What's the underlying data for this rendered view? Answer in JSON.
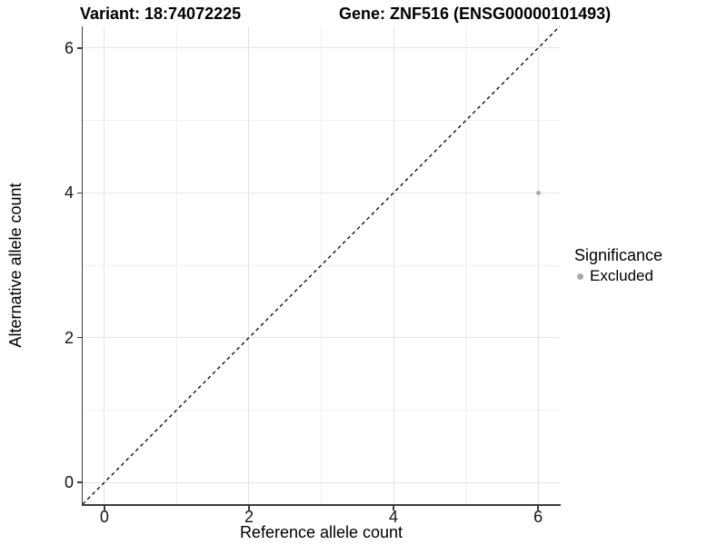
{
  "chart_data": {
    "type": "scatter",
    "title_left": "Variant: 18:74072225",
    "title_right": "Gene: ZNF516 (ENSG00000101493)",
    "xlabel": "Reference allele count",
    "ylabel": "Alternative allele count",
    "xlim": [
      -0.3,
      6.3
    ],
    "ylim": [
      -0.3,
      6.3
    ],
    "x_ticks": [
      0,
      2,
      4,
      6
    ],
    "y_ticks": [
      0,
      2,
      4,
      6
    ],
    "x_minor_ticks": [
      1,
      3,
      5
    ],
    "y_minor_ticks": [
      1,
      3,
      5
    ],
    "grid": true,
    "legend_position": "right",
    "series": [
      {
        "name": "Excluded",
        "color": "#aaaaaa",
        "point_radius_px": 2.5,
        "points": [
          {
            "x": 6,
            "y": 4
          }
        ]
      }
    ],
    "reference_line": {
      "kind": "identity",
      "equation": "y = x",
      "style": "dashed",
      "color": "#000000"
    },
    "legend": {
      "title": "Significance",
      "entries": [
        {
          "label": "Excluded",
          "color": "#aaaaaa"
        }
      ]
    }
  },
  "colors": {
    "background": "#ffffff",
    "grid_major": "#e4e4e4",
    "grid_minor": "#f0f0f0",
    "axis_line": "#3d3d3d",
    "tick_label": "#141414",
    "reference_line": "#000000",
    "point_excluded": "#aaaaaa"
  }
}
